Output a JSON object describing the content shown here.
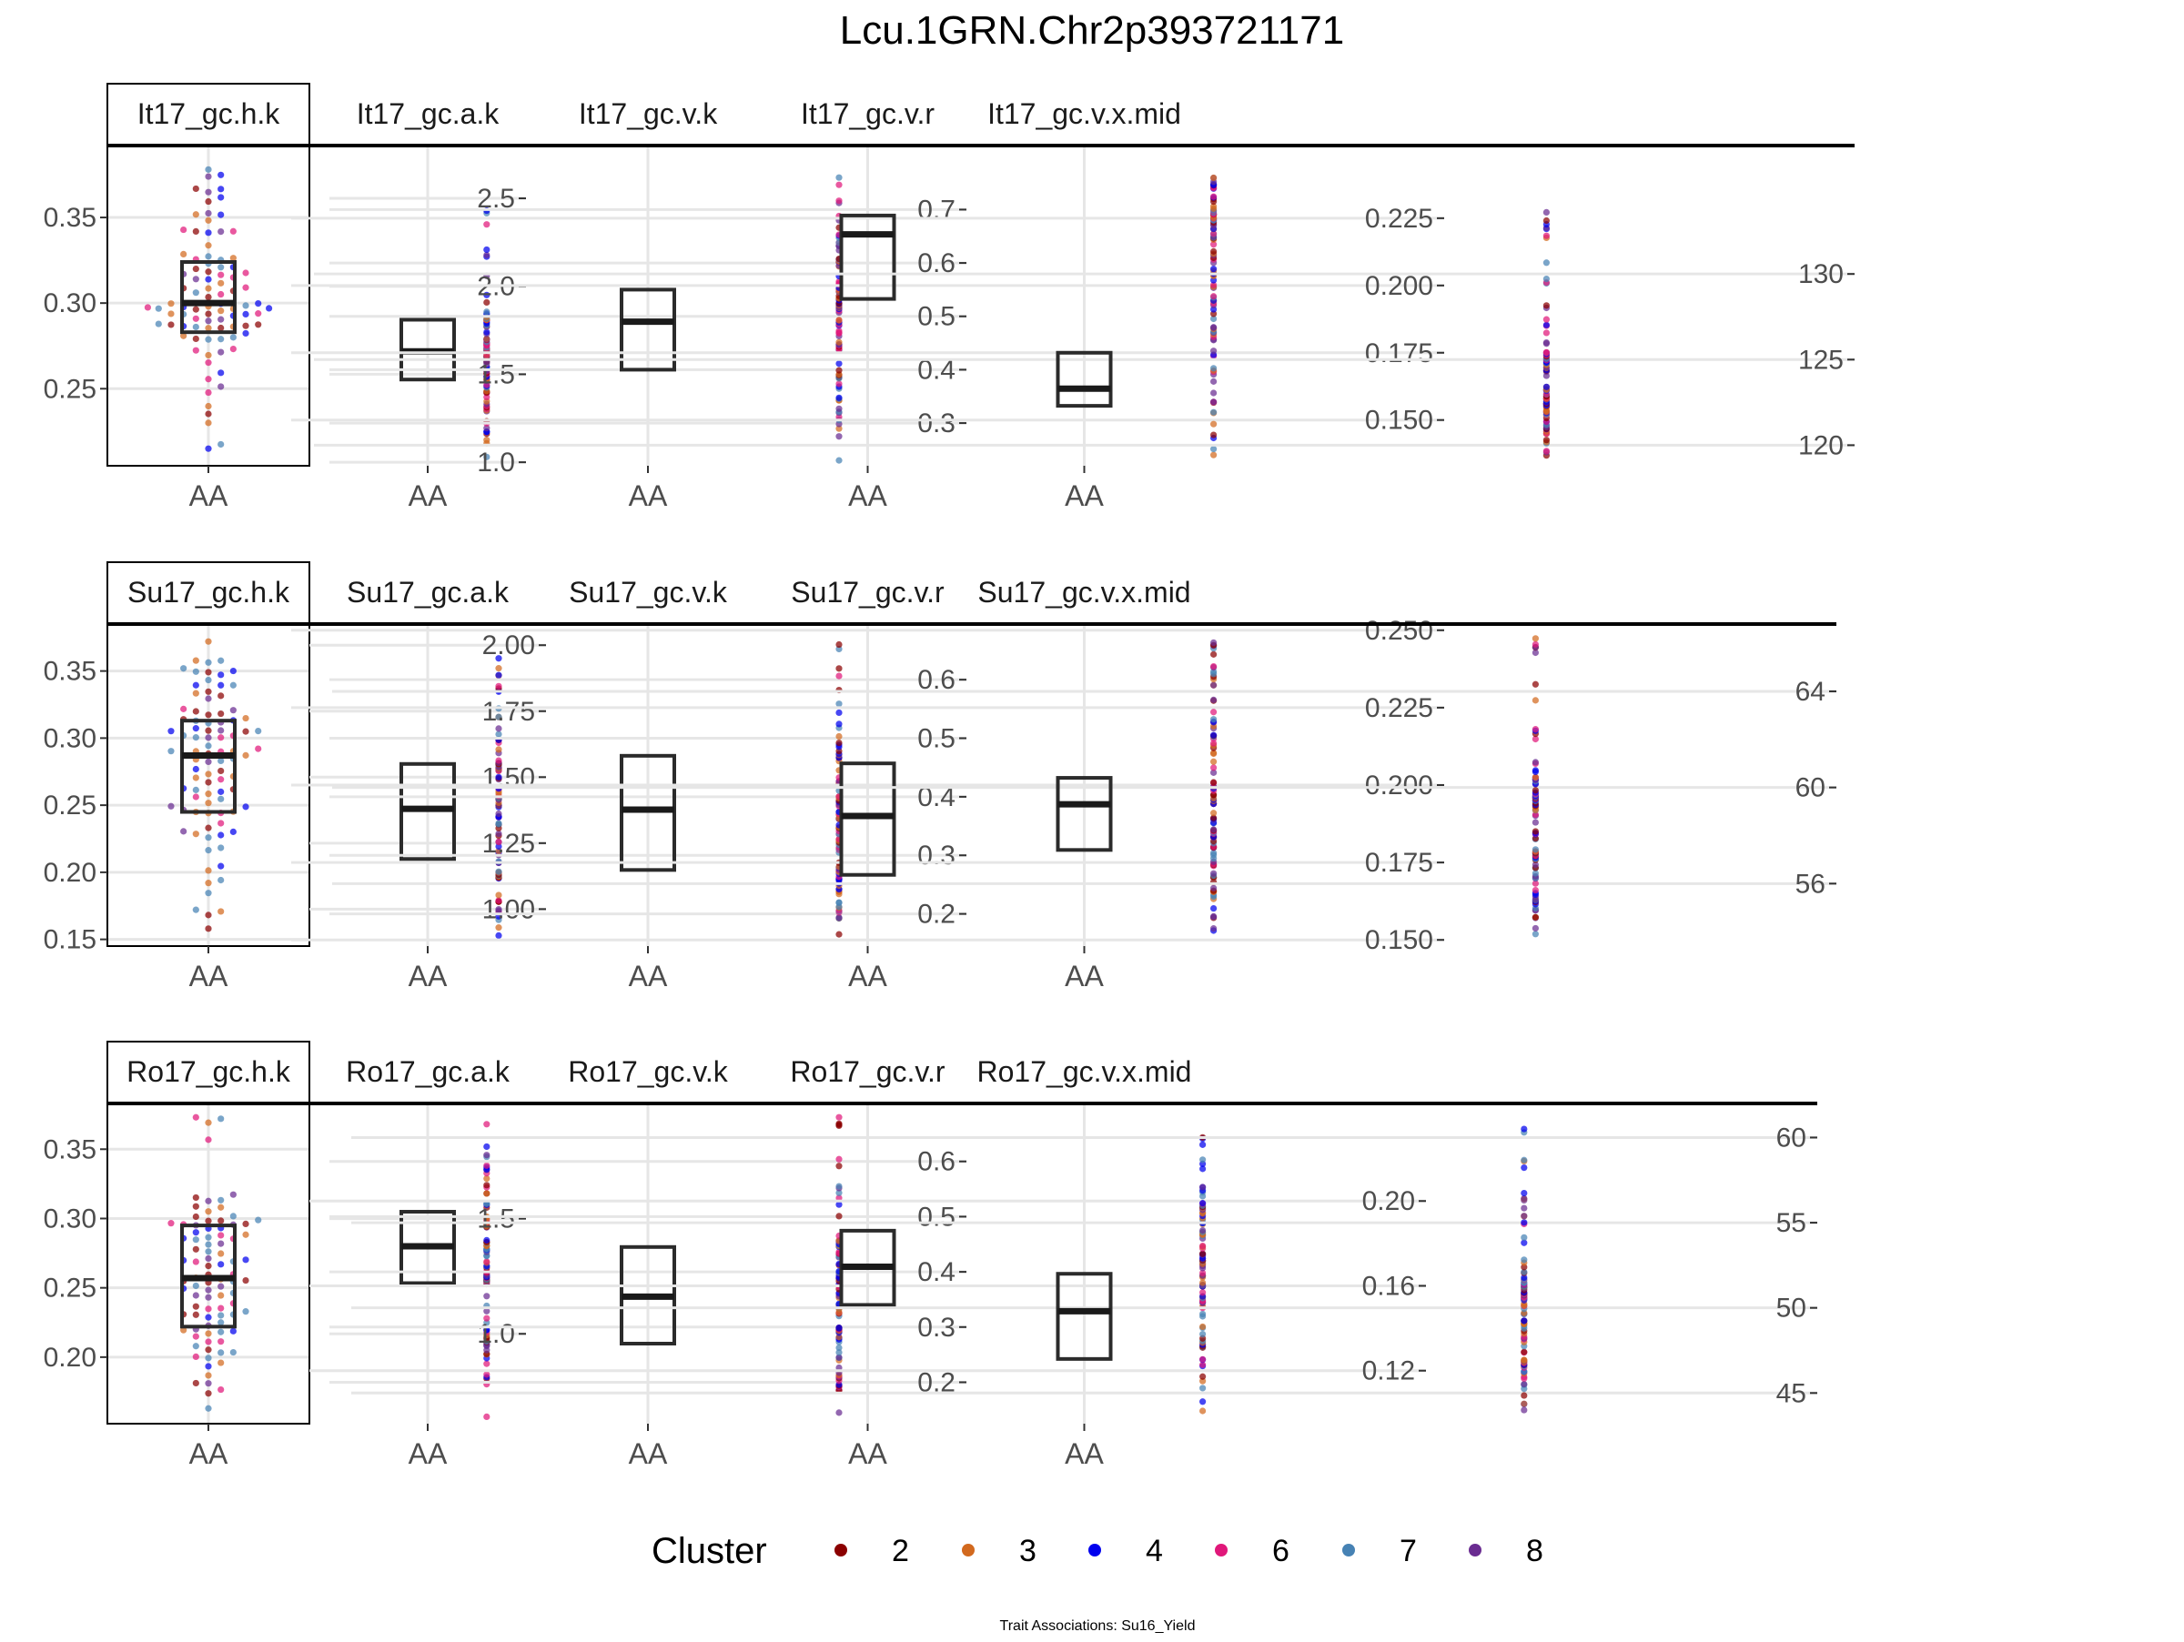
{
  "title": "Lcu.1GRN.Chr2p393721171",
  "caption": "Trait Associations: Su16_Yield",
  "legend": {
    "title": "Cluster",
    "items": [
      {
        "label": "2",
        "color": "#8B0000"
      },
      {
        "label": "3",
        "color": "#D2691E"
      },
      {
        "label": "4",
        "color": "#0000EE"
      },
      {
        "label": "6",
        "color": "#E0187A"
      },
      {
        "label": "7",
        "color": "#4682B4"
      },
      {
        "label": "8",
        "color": "#6A2C91"
      }
    ]
  },
  "chart_data": [
    {
      "type": "box",
      "panel": "It17_gc.h.k",
      "category": "AA",
      "ylim": [
        0.205,
        0.392
      ],
      "yticks": [
        0.25,
        0.3,
        0.35
      ],
      "ytick_labels": [
        "0.25",
        "0.30",
        "0.35"
      ],
      "box": {
        "q1": 0.283,
        "median": 0.3,
        "q3": 0.324,
        "min": 0.215,
        "max": 0.378
      }
    },
    {
      "type": "box",
      "panel": "It17_gc.a.k",
      "category": "AA",
      "ylim": [
        0.98,
        2.8
      ],
      "yticks": [
        1.0,
        1.5,
        2.0,
        2.5
      ],
      "ytick_labels": [
        "1.0",
        "1.5",
        "2.0",
        "2.5"
      ],
      "box": {
        "q1": 1.47,
        "median": 1.63,
        "q3": 1.81,
        "min": 1.03,
        "max": 2.43
      }
    },
    {
      "type": "box",
      "panel": "It17_gc.v.k",
      "category": "AA",
      "ylim": [
        0.22,
        0.82
      ],
      "yticks": [
        0.3,
        0.4,
        0.5,
        0.6,
        0.7
      ],
      "ytick_labels": [
        "0.3",
        "0.4",
        "0.5",
        "0.6",
        "0.7"
      ],
      "box": {
        "q1": 0.4,
        "median": 0.49,
        "q3": 0.55,
        "min": 0.23,
        "max": 0.76
      }
    },
    {
      "type": "box",
      "panel": "It17_gc.v.r",
      "category": "AA",
      "ylim": [
        0.133,
        0.252
      ],
      "yticks": [
        0.15,
        0.175,
        0.2,
        0.225
      ],
      "ytick_labels": [
        "0.150",
        "0.175",
        "0.200",
        "0.225"
      ],
      "box": {
        "q1": 0.195,
        "median": 0.219,
        "q3": 0.226,
        "min": 0.137,
        "max": 0.24
      }
    },
    {
      "type": "box",
      "panel": "It17_gc.v.x.mid",
      "category": "AA",
      "ylim": [
        118.8,
        137.5
      ],
      "yticks": [
        120,
        125,
        130
      ],
      "ytick_labels": [
        "120",
        "125",
        "130"
      ],
      "box": {
        "q1": 122.3,
        "median": 123.3,
        "q3": 125.4,
        "min": 119.4,
        "max": 133.6
      }
    },
    {
      "type": "box",
      "panel": "Su17_gc.h.k",
      "category": "AA",
      "ylim": [
        0.145,
        0.385
      ],
      "yticks": [
        0.15,
        0.2,
        0.25,
        0.3,
        0.35
      ],
      "ytick_labels": [
        "0.15",
        "0.20",
        "0.25",
        "0.30",
        "0.35"
      ],
      "box": {
        "q1": 0.245,
        "median": 0.287,
        "q3": 0.313,
        "min": 0.158,
        "max": 0.372
      }
    },
    {
      "type": "box",
      "panel": "Su17_gc.a.k",
      "category": "AA",
      "ylim": [
        0.86,
        2.08
      ],
      "yticks": [
        1.0,
        1.25,
        1.5,
        1.75,
        2.0
      ],
      "ytick_labels": [
        "1.00",
        "1.25",
        "1.50",
        "1.75",
        "2.00"
      ],
      "box": {
        "q1": 1.19,
        "median": 1.38,
        "q3": 1.55,
        "min": 0.9,
        "max": 1.95
      }
    },
    {
      "type": "box",
      "panel": "Su17_gc.v.k",
      "category": "AA",
      "ylim": [
        0.145,
        0.695
      ],
      "yticks": [
        0.2,
        0.3,
        0.4,
        0.5,
        0.6
      ],
      "ytick_labels": [
        "0.2",
        "0.3",
        "0.4",
        "0.5",
        "0.6"
      ],
      "box": {
        "q1": 0.275,
        "median": 0.378,
        "q3": 0.47,
        "min": 0.165,
        "max": 0.66
      }
    },
    {
      "type": "box",
      "panel": "Su17_gc.v.r",
      "category": "AA",
      "ylim": [
        0.148,
        0.252
      ],
      "yticks": [
        0.15,
        0.175,
        0.2,
        0.225,
        0.25
      ],
      "ytick_labels": [
        "0.150",
        "0.175",
        "0.200",
        "0.225",
        "0.250"
      ],
      "box": {
        "q1": 0.171,
        "median": 0.19,
        "q3": 0.207,
        "min": 0.153,
        "max": 0.246
      }
    },
    {
      "type": "box",
      "panel": "Su17_gc.v.x.mid",
      "category": "AA",
      "ylim": [
        53.4,
        66.8
      ],
      "yticks": [
        56,
        60,
        64
      ],
      "ytick_labels": [
        "56",
        "60",
        "64"
      ],
      "box": {
        "q1": 57.4,
        "median": 59.3,
        "q3": 60.4,
        "min": 53.9,
        "max": 66.2
      }
    },
    {
      "type": "box",
      "panel": "Ro17_gc.h.k",
      "category": "AA",
      "ylim": [
        0.152,
        0.383
      ],
      "yticks": [
        0.2,
        0.25,
        0.3,
        0.35
      ],
      "ytick_labels": [
        "0.20",
        "0.25",
        "0.30",
        "0.35"
      ],
      "box": {
        "q1": 0.222,
        "median": 0.257,
        "q3": 0.295,
        "min": 0.163,
        "max": 0.373
      }
    },
    {
      "type": "box",
      "panel": "Ro17_gc.a.k",
      "category": "AA",
      "ylim": [
        0.61,
        2.0
      ],
      "yticks": [
        1.0,
        1.5
      ],
      "ytick_labels": [
        "1.0",
        "1.5"
      ],
      "box": {
        "q1": 1.22,
        "median": 1.38,
        "q3": 1.53,
        "min": 0.64,
        "max": 1.91
      }
    },
    {
      "type": "box",
      "panel": "Ro17_gc.v.k",
      "category": "AA",
      "ylim": [
        0.125,
        0.705
      ],
      "yticks": [
        0.2,
        0.3,
        0.4,
        0.5,
        0.6
      ],
      "ytick_labels": [
        "0.2",
        "0.3",
        "0.4",
        "0.5",
        "0.6"
      ],
      "box": {
        "q1": 0.27,
        "median": 0.355,
        "q3": 0.445,
        "min": 0.145,
        "max": 0.68
      }
    },
    {
      "type": "box",
      "panel": "Ro17_gc.v.r",
      "category": "AA",
      "ylim": [
        0.095,
        0.246
      ],
      "yticks": [
        0.12,
        0.16,
        0.2
      ],
      "ytick_labels": [
        "0.12",
        "0.16",
        "0.20"
      ],
      "box": {
        "q1": 0.151,
        "median": 0.169,
        "q3": 0.186,
        "min": 0.101,
        "max": 0.23
      }
    },
    {
      "type": "box",
      "panel": "Ro17_gc.v.x.mid",
      "category": "AA",
      "ylim": [
        43.2,
        62.0
      ],
      "yticks": [
        45,
        50,
        55,
        60
      ],
      "ytick_labels": [
        "45",
        "50",
        "55",
        "60"
      ],
      "box": {
        "q1": 47.0,
        "median": 49.8,
        "q3": 52.0,
        "min": 44.0,
        "max": 60.5
      }
    }
  ]
}
